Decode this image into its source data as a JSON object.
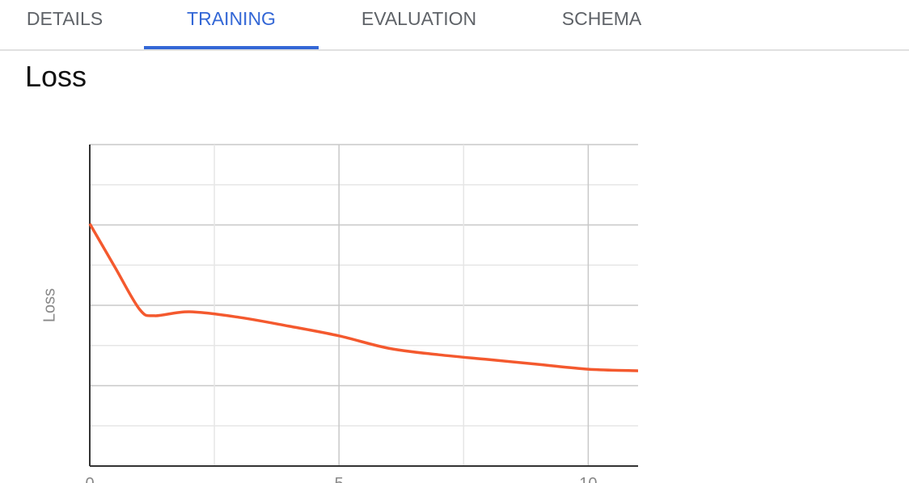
{
  "tabs": [
    "DETAILS",
    "TRAINING",
    "EVALUATION",
    "SCHEMA"
  ],
  "active_tab": 1,
  "section_title": "Loss",
  "chart_data": {
    "type": "line",
    "y_label": "Loss",
    "x": [
      0,
      0.5,
      1,
      1.3,
      2,
      3,
      4,
      5,
      6,
      7,
      8,
      9,
      10,
      11
    ],
    "series": [
      {
        "name": "Loss",
        "color": "#f4592e",
        "values": [
          6.03,
          4.96,
          3.9,
          3.74,
          3.84,
          3.7,
          3.48,
          3.24,
          2.93,
          2.77,
          2.65,
          2.53,
          2.41,
          2.37
        ]
      }
    ],
    "xlim": [
      0,
      11
    ],
    "xticks": [
      0,
      5,
      10
    ],
    "x_minor_grid": [
      2.5,
      7.5
    ],
    "ylim": [
      0,
      8
    ],
    "y_grid": [
      1,
      2,
      3,
      4,
      5,
      6,
      7,
      8
    ],
    "grid": true
  }
}
